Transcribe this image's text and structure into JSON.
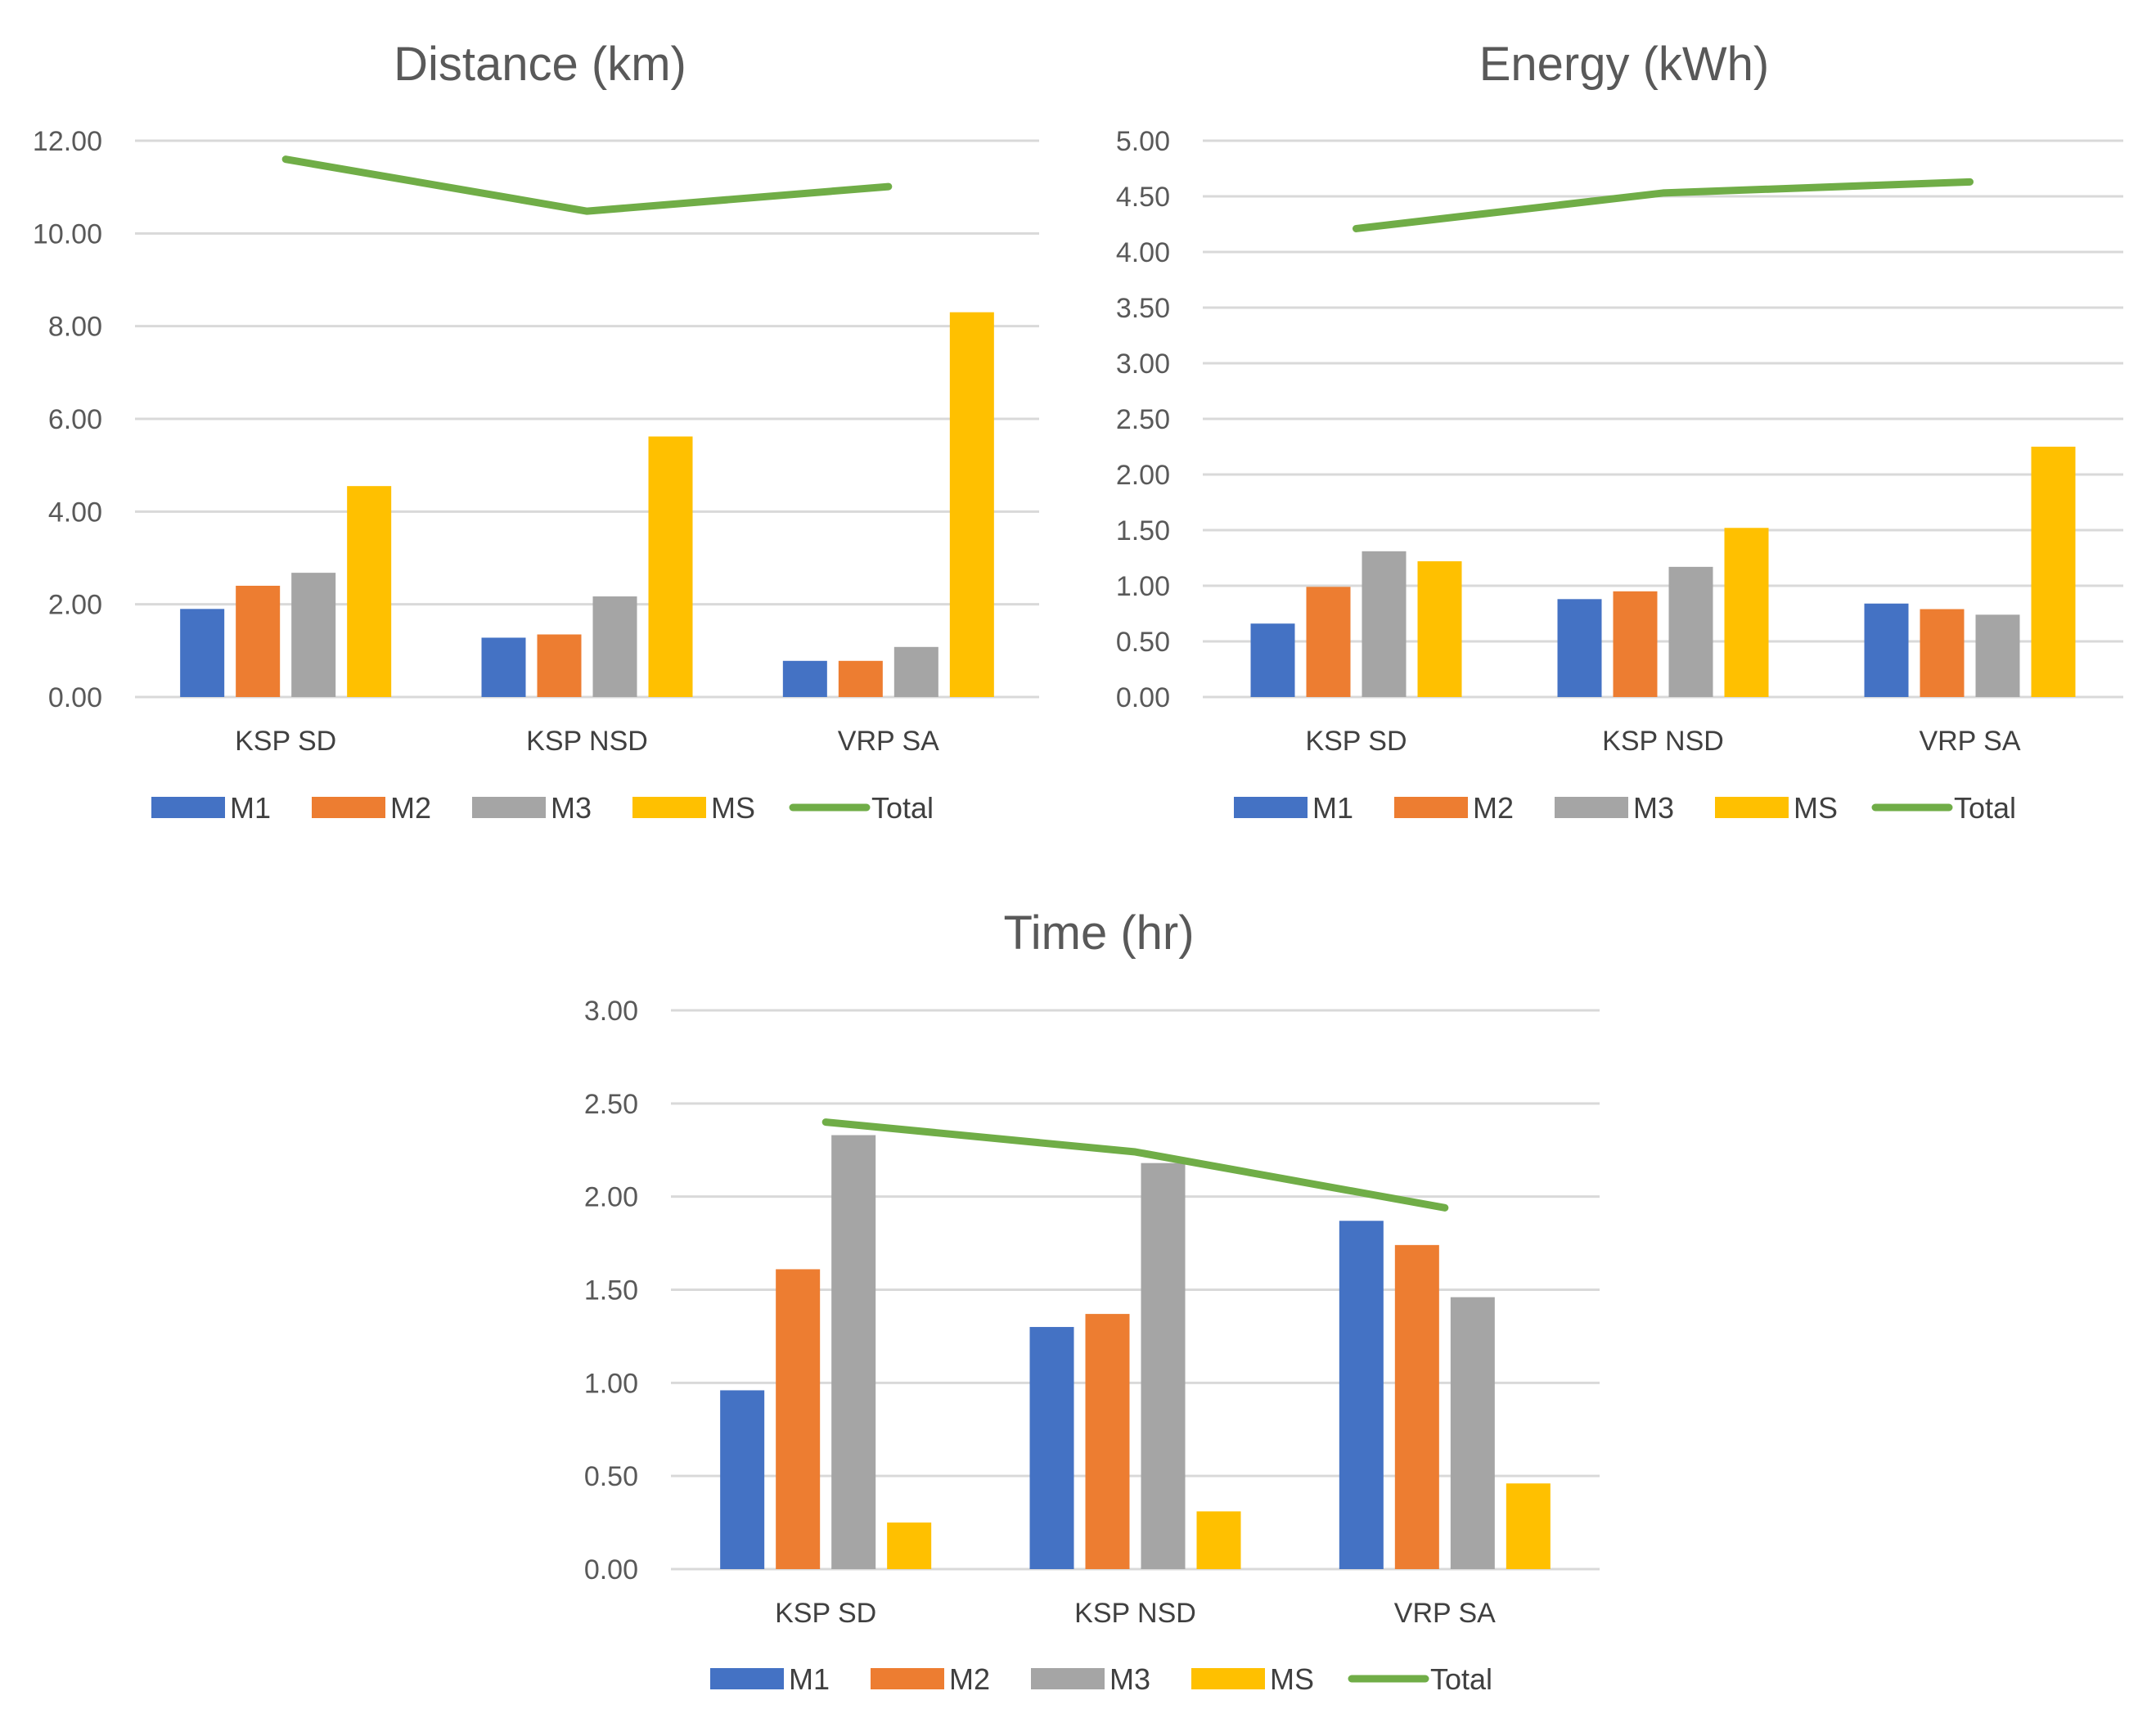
{
  "colors": {
    "M1": "#4472C4",
    "M2": "#ED7D31",
    "M3": "#A5A5A5",
    "MS": "#FFC000",
    "Total": "#70AD47",
    "grid": "#D9D9D9"
  },
  "chart_data": [
    {
      "type": "bar",
      "title": "Distance (km)",
      "categories": [
        "KSP SD",
        "KSP NSD",
        "VRP SA"
      ],
      "ylim": [
        0,
        12
      ],
      "yticks": [
        "0.00",
        "2.00",
        "4.00",
        "6.00",
        "8.00",
        "10.00",
        "12.00"
      ],
      "grid": true,
      "legend": "bottom",
      "series": [
        {
          "name": "M1",
          "type": "bar",
          "values": [
            1.9,
            1.28,
            0.78
          ]
        },
        {
          "name": "M2",
          "type": "bar",
          "values": [
            2.4,
            1.35,
            0.78
          ]
        },
        {
          "name": "M3",
          "type": "bar",
          "values": [
            2.68,
            2.17,
            1.08
          ]
        },
        {
          "name": "MS",
          "type": "bar",
          "values": [
            4.55,
            5.62,
            8.3
          ]
        },
        {
          "name": "Total",
          "type": "line",
          "values": [
            11.6,
            10.48,
            11.01
          ]
        }
      ]
    },
    {
      "type": "bar",
      "title": "Energy (kWh)",
      "categories": [
        "KSP SD",
        "KSP NSD",
        "VRP SA"
      ],
      "ylim": [
        0,
        5
      ],
      "yticks": [
        "0.00",
        "0.50",
        "1.00",
        "1.50",
        "2.00",
        "2.50",
        "3.00",
        "3.50",
        "4.00",
        "4.50",
        "5.00"
      ],
      "grid": true,
      "legend": "bottom",
      "series": [
        {
          "name": "M1",
          "type": "bar",
          "values": [
            0.66,
            0.88,
            0.84
          ]
        },
        {
          "name": "M2",
          "type": "bar",
          "values": [
            0.99,
            0.95,
            0.79
          ]
        },
        {
          "name": "M3",
          "type": "bar",
          "values": [
            1.31,
            1.17,
            0.74
          ]
        },
        {
          "name": "MS",
          "type": "bar",
          "values": [
            1.22,
            1.52,
            2.25
          ]
        },
        {
          "name": "Total",
          "type": "line",
          "values": [
            4.21,
            4.53,
            4.63
          ]
        }
      ]
    },
    {
      "type": "bar",
      "title": "Time (hr)",
      "categories": [
        "KSP SD",
        "KSP NSD",
        "VRP SA"
      ],
      "ylim": [
        0,
        3
      ],
      "yticks": [
        "0.00",
        "0.50",
        "1.00",
        "1.50",
        "2.00",
        "2.50",
        "3.00"
      ],
      "grid": true,
      "legend": "bottom",
      "series": [
        {
          "name": "M1",
          "type": "bar",
          "values": [
            0.96,
            1.3,
            1.87
          ]
        },
        {
          "name": "M2",
          "type": "bar",
          "values": [
            1.61,
            1.37,
            1.74
          ]
        },
        {
          "name": "M3",
          "type": "bar",
          "values": [
            2.33,
            2.18,
            1.46
          ]
        },
        {
          "name": "MS",
          "type": "bar",
          "values": [
            0.25,
            0.31,
            0.46
          ]
        },
        {
          "name": "Total",
          "type": "line",
          "values": [
            2.4,
            2.24,
            1.94
          ]
        }
      ]
    }
  ]
}
